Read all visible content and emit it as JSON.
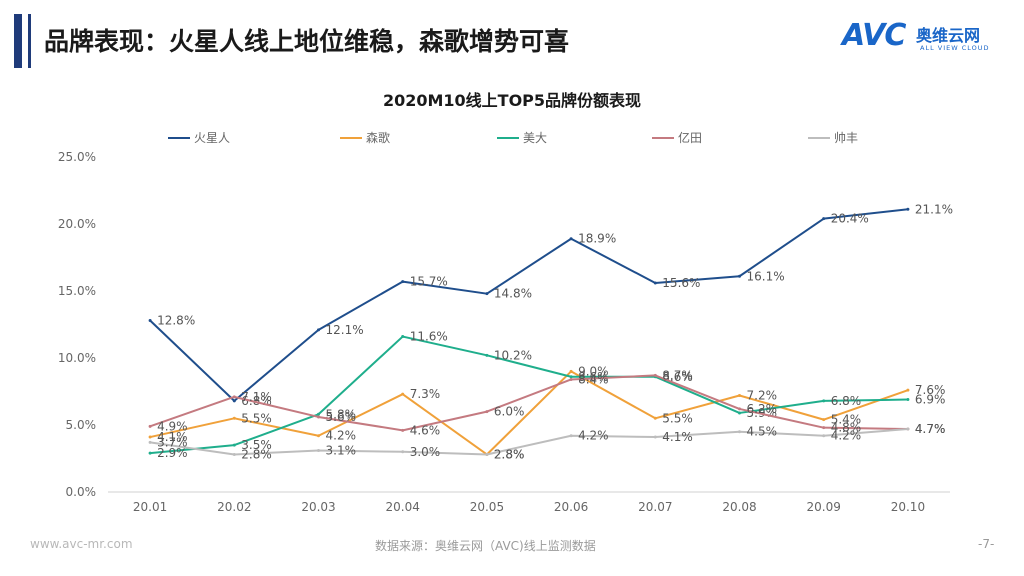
{
  "page": {
    "title": "品牌表现：火星人线上地位维稳，森歌增势可喜",
    "logo_mark": "AVC",
    "logo_cn": "奥维云网",
    "logo_en": "ALL VIEW CLOUD",
    "footer_left": "www.avc-mr.com",
    "footer_source": "数据来源：奥维云网（AVC)线上监测数据",
    "page_number": "-7-"
  },
  "chart_data": {
    "type": "line",
    "title": "2020M10线上TOP5品牌份额表现",
    "categories": [
      "20.01",
      "20.02",
      "20.03",
      "20.04",
      "20.05",
      "20.06",
      "20.07",
      "20.08",
      "20.09",
      "20.10"
    ],
    "ylim": [
      0,
      25
    ],
    "yticks": [
      "0.0%",
      "5.0%",
      "10.0%",
      "15.0%",
      "20.0%",
      "25.0%"
    ],
    "legend_position": "top",
    "grid": false,
    "series": [
      {
        "name": "火星人",
        "color": "#1f4e8c",
        "values": [
          12.8,
          6.8,
          12.1,
          15.7,
          14.8,
          18.9,
          15.6,
          16.1,
          20.4,
          21.1
        ],
        "labels": [
          "12.8%",
          "6.8%",
          "12.1%",
          "15.7%",
          "14.8%",
          "18.9%",
          "15.6%",
          "16.1%",
          "20.4%",
          "21.1%"
        ]
      },
      {
        "name": "森歌",
        "color": "#f0a13a",
        "values": [
          4.1,
          5.5,
          4.2,
          7.3,
          2.8,
          9.0,
          5.5,
          7.2,
          5.4,
          7.6
        ],
        "labels": [
          "4.1%",
          "5.5%",
          "4.2%",
          "7.3%",
          "2.8%",
          "9.0%",
          "5.5%",
          "7.2%",
          "5.4%",
          "7.6%"
        ]
      },
      {
        "name": "美大",
        "color": "#1fae8c",
        "values": [
          2.9,
          3.5,
          5.8,
          11.6,
          10.2,
          8.6,
          8.6,
          5.9,
          6.8,
          6.9
        ],
        "labels": [
          "2.9%",
          "3.5%",
          "5.8%",
          "11.6%",
          "10.2%",
          "8.6%",
          "8.6%",
          "5.9%",
          "6.8%",
          "6.9%"
        ]
      },
      {
        "name": "亿田",
        "color": "#c47a80",
        "values": [
          4.9,
          7.1,
          5.6,
          4.6,
          6.0,
          8.4,
          8.7,
          6.2,
          4.8,
          4.7
        ],
        "labels": [
          "4.9%",
          "7.1%",
          "5.6%",
          "4.6%",
          "6.0%",
          "8.4%",
          "8.7%",
          "6.2%",
          "4.8%",
          "4.7%"
        ]
      },
      {
        "name": "帅丰",
        "color": "#bdbdbd",
        "values": [
          3.7,
          2.8,
          3.1,
          3.0,
          2.8,
          4.2,
          4.1,
          4.5,
          4.2,
          4.7
        ],
        "labels": [
          "3.7%",
          "2.8%",
          "3.1%",
          "3.0%",
          "2.8%",
          "4.2%",
          "4.1%",
          "4.5%",
          "4.2%",
          "4.7%"
        ]
      }
    ]
  }
}
